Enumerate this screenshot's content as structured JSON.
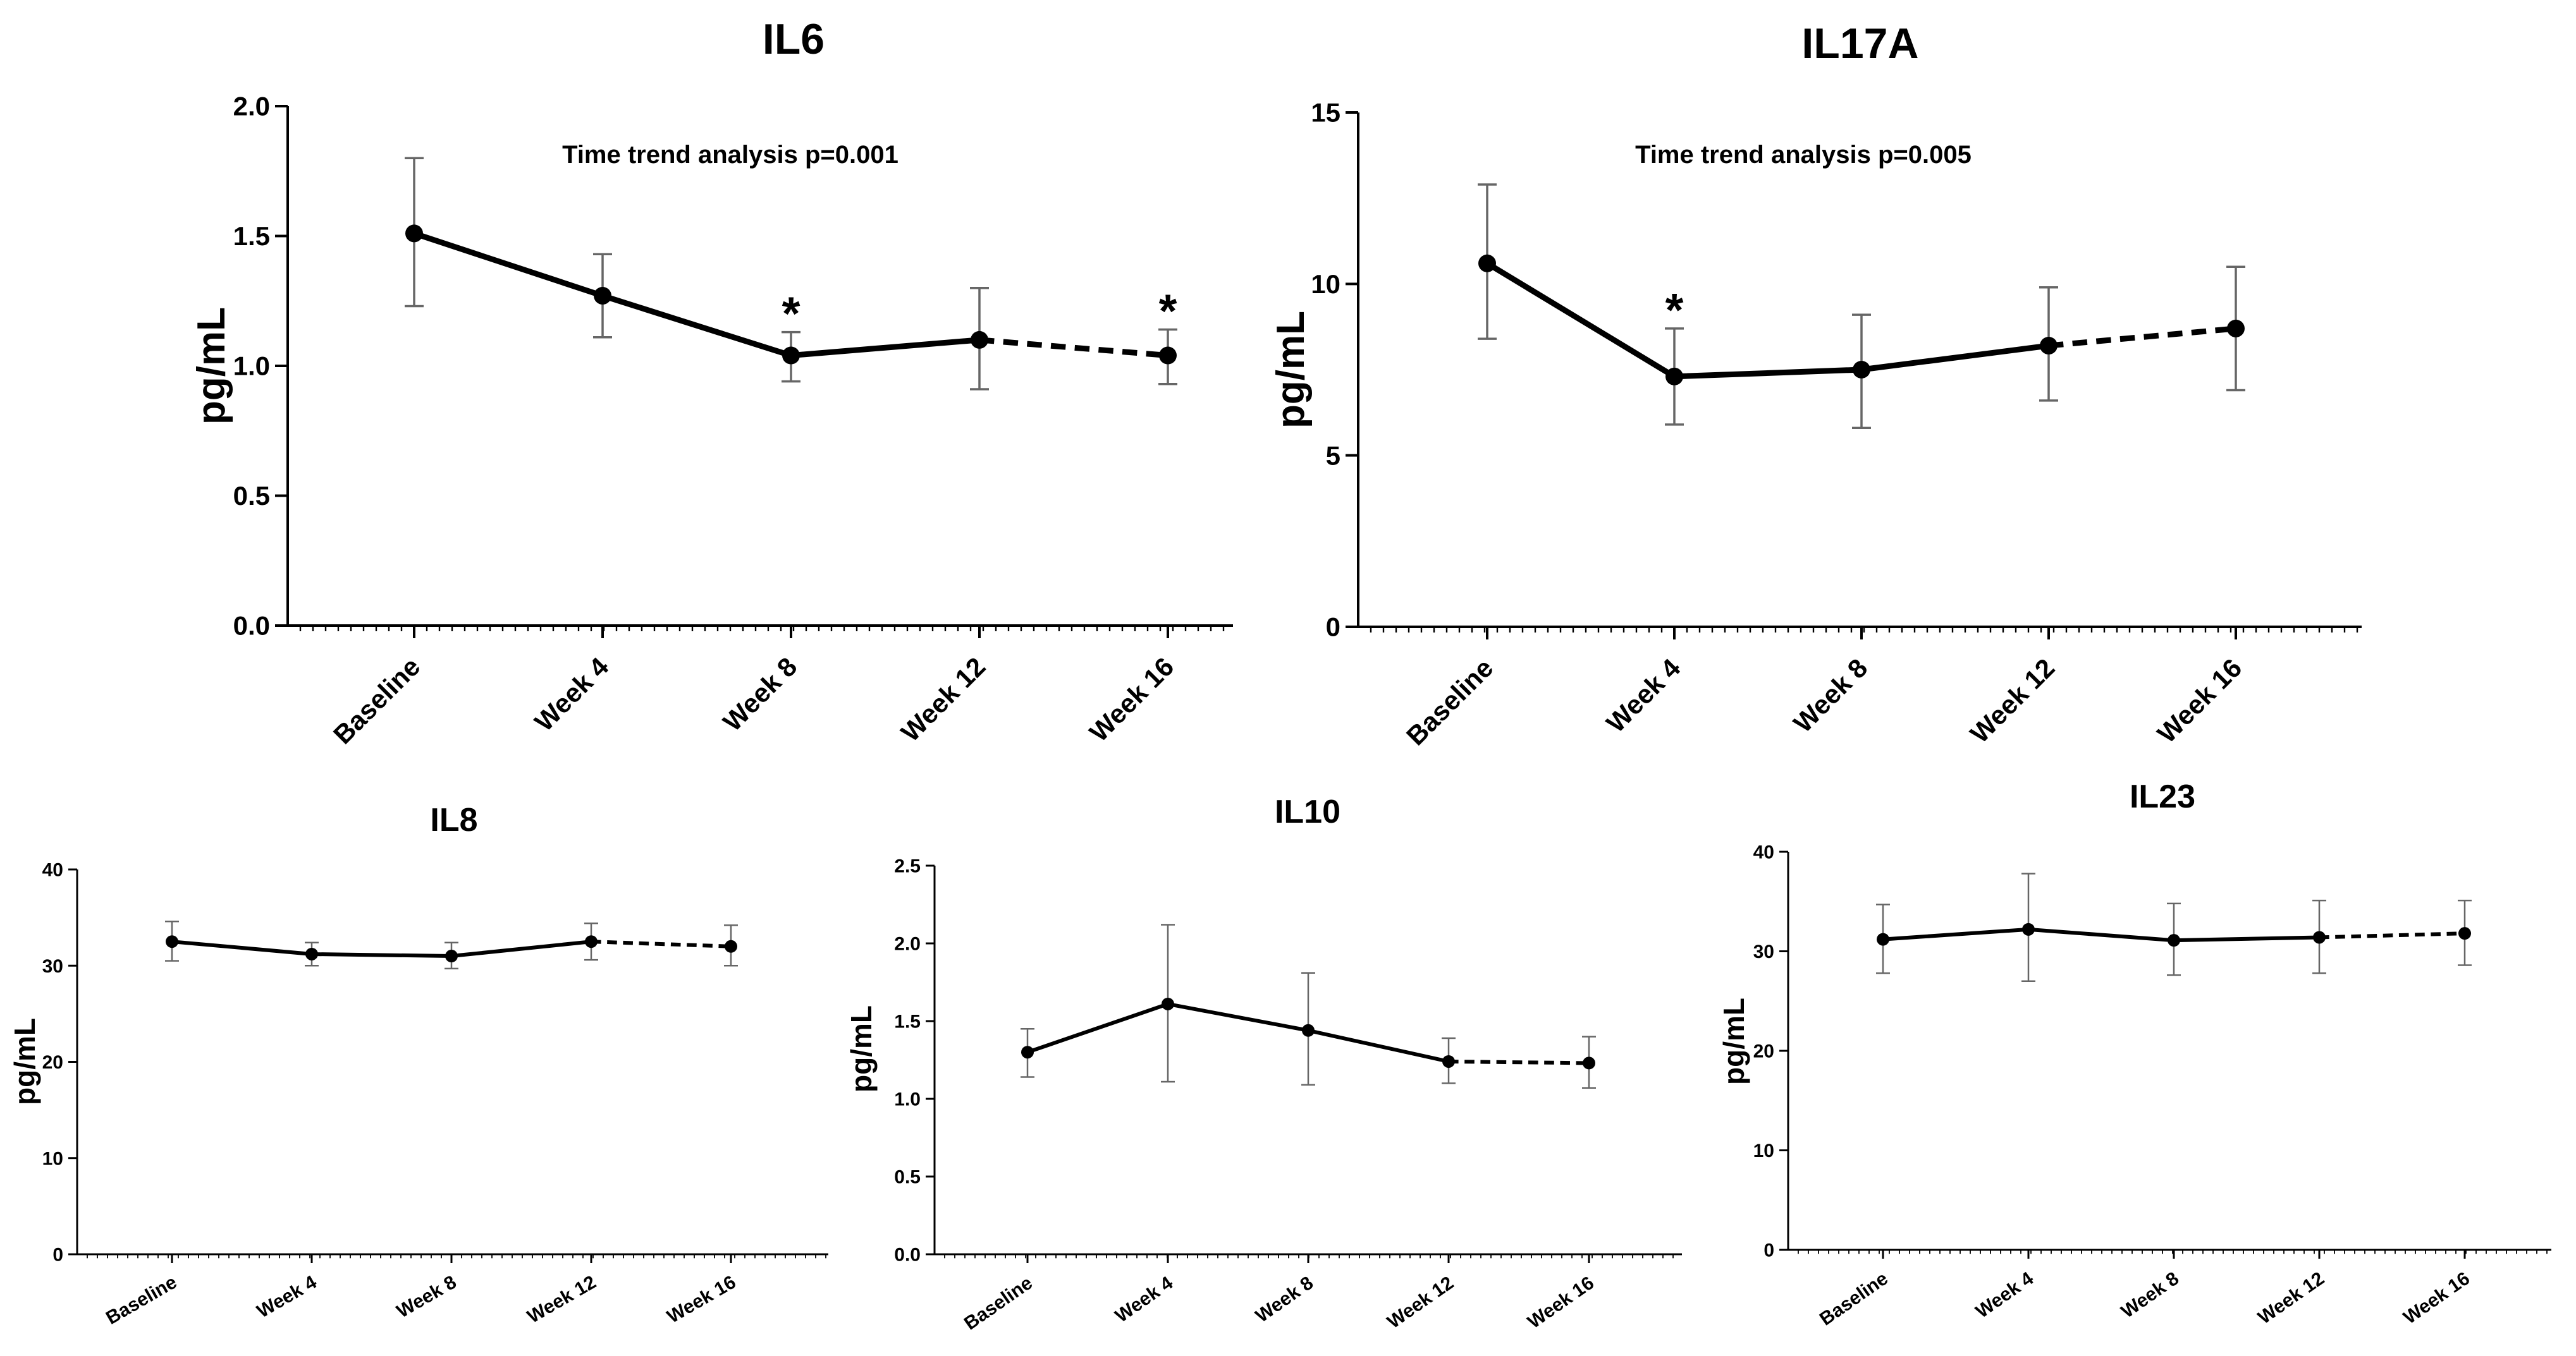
{
  "chart_data": [
    {
      "id": "il6",
      "type": "line",
      "title": "IL6",
      "ylabel": "pg/mL",
      "xlabel": "",
      "categories": [
        "Baseline",
        "Week 4",
        "Week 8",
        "Week 12",
        "Week 16"
      ],
      "values": [
        1.51,
        1.27,
        1.04,
        1.1,
        1.04
      ],
      "error_upper": [
        1.8,
        1.43,
        1.13,
        1.3,
        1.14
      ],
      "error_lower": [
        1.23,
        1.11,
        0.94,
        0.91,
        0.93
      ],
      "dashed_last_segment": true,
      "significant": [
        false,
        false,
        true,
        false,
        true
      ],
      "significance_marker": "*",
      "ylim": [
        0,
        2.0
      ],
      "yticks": [
        "0.0",
        "0.5",
        "1.0",
        "1.5",
        "2.0"
      ],
      "annotation": "Time trend analysis p=0.001"
    },
    {
      "id": "il17a",
      "type": "line",
      "title": "IL17A",
      "ylabel": "pg/mL",
      "xlabel": "",
      "categories": [
        "Baseline",
        "Week 4",
        "Week 8",
        "Week 12",
        "Week 16"
      ],
      "values": [
        10.6,
        7.3,
        7.5,
        8.2,
        8.7
      ],
      "error_upper": [
        12.9,
        8.7,
        9.1,
        9.9,
        10.5
      ],
      "error_lower": [
        8.4,
        5.9,
        5.8,
        6.6,
        6.9
      ],
      "dashed_last_segment": true,
      "significant": [
        false,
        true,
        false,
        false,
        false
      ],
      "significance_marker": "*",
      "ylim": [
        0,
        15
      ],
      "yticks": [
        "0",
        "5",
        "10",
        "15"
      ],
      "annotation": "Time trend analysis p=0.005"
    },
    {
      "id": "il8",
      "type": "line",
      "title": "IL8",
      "ylabel": "pg/mL",
      "xlabel": "",
      "categories": [
        "Baseline",
        "Week 4",
        "Week 8",
        "Week 12",
        "Week 16"
      ],
      "values": [
        32.5,
        31.2,
        31.0,
        32.5,
        32.0
      ],
      "error_upper": [
        34.6,
        32.4,
        32.4,
        34.4,
        34.2
      ],
      "error_lower": [
        30.5,
        30.0,
        29.7,
        30.6,
        30.0
      ],
      "dashed_last_segment": true,
      "significant": [
        false,
        false,
        false,
        false,
        false
      ],
      "significance_marker": "*",
      "ylim": [
        0,
        40
      ],
      "yticks": [
        "0",
        "10",
        "20",
        "30",
        "40"
      ],
      "annotation": ""
    },
    {
      "id": "il10",
      "type": "line",
      "title": "IL10",
      "ylabel": "pg/mL",
      "xlabel": "",
      "categories": [
        "Baseline",
        "Week 4",
        "Week 8",
        "Week 12",
        "Week 16"
      ],
      "values": [
        1.3,
        1.61,
        1.44,
        1.24,
        1.23
      ],
      "error_upper": [
        1.45,
        2.12,
        1.81,
        1.39,
        1.4
      ],
      "error_lower": [
        1.14,
        1.11,
        1.09,
        1.1,
        1.07
      ],
      "dashed_last_segment": true,
      "significant": [
        false,
        false,
        false,
        false,
        false
      ],
      "significance_marker": "*",
      "ylim": [
        0,
        2.5
      ],
      "yticks": [
        "0.0",
        "0.5",
        "1.0",
        "1.5",
        "2.0",
        "2.5"
      ],
      "annotation": ""
    },
    {
      "id": "il23",
      "type": "line",
      "title": "IL23",
      "ylabel": "pg/mL",
      "xlabel": "",
      "categories": [
        "Baseline",
        "Week 4",
        "Week 8",
        "Week 12",
        "Week 16"
      ],
      "values": [
        31.2,
        32.2,
        31.1,
        31.4,
        31.8
      ],
      "error_upper": [
        34.7,
        37.8,
        34.8,
        35.1,
        35.1
      ],
      "error_lower": [
        27.8,
        27.0,
        27.6,
        27.8,
        28.6
      ],
      "dashed_last_segment": true,
      "significant": [
        false,
        false,
        false,
        false,
        false
      ],
      "significance_marker": "*",
      "ylim": [
        0,
        40
      ],
      "yticks": [
        "0",
        "10",
        "20",
        "30",
        "40"
      ],
      "annotation": ""
    }
  ]
}
